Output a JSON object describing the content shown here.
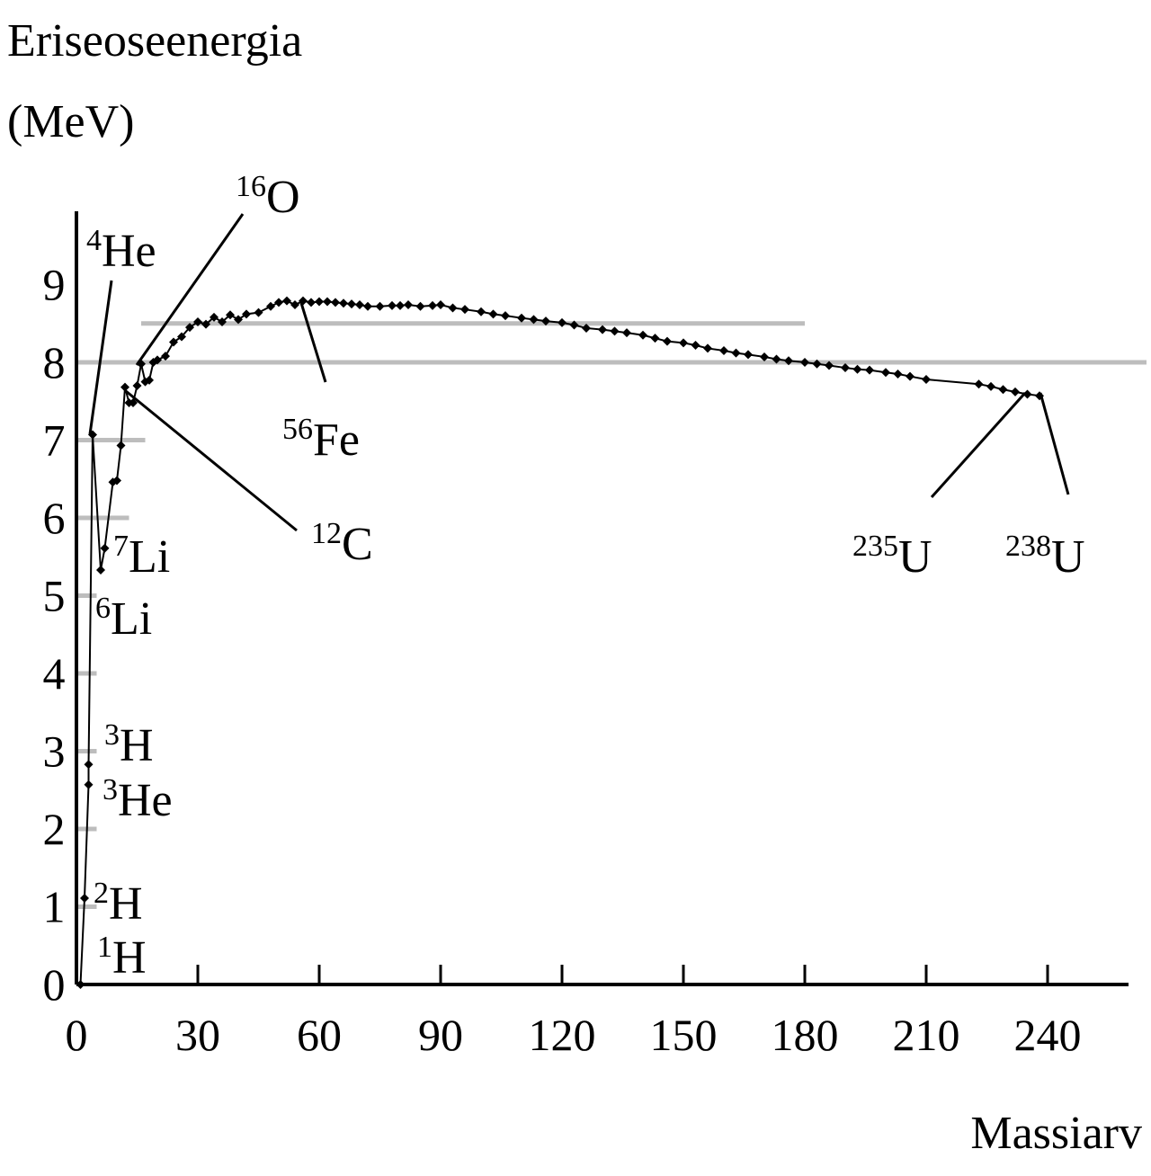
{
  "chart_data": {
    "type": "line",
    "ylabel": [
      "Eriseoseenergia",
      "(MeV)"
    ],
    "xlabel": "Massiarv",
    "xlim": [
      0,
      260
    ],
    "ylim": [
      0,
      10
    ],
    "xticks": [
      "0",
      "30",
      "60",
      "90",
      "120",
      "150",
      "180",
      "210",
      "240"
    ],
    "yticks": [
      "0",
      "1",
      "2",
      "3",
      "4",
      "5",
      "6",
      "7",
      "8",
      "9"
    ],
    "xtick_values": [
      0,
      30,
      60,
      90,
      120,
      150,
      180,
      210,
      240
    ],
    "ytick_values": [
      0,
      1,
      2,
      3,
      4,
      5,
      6,
      7,
      8,
      9
    ],
    "grid": "horizontal",
    "guide_color": "#bdbdbd",
    "series": [
      {
        "x": [
          1,
          2,
          3,
          3,
          4,
          6,
          7,
          9,
          10,
          11,
          12,
          13,
          14,
          15,
          16,
          17,
          18,
          19,
          20,
          22,
          24,
          26,
          28,
          30,
          32,
          34,
          36,
          38,
          40,
          42,
          45,
          48,
          50,
          52,
          54,
          56,
          58,
          60,
          62,
          64,
          66,
          68,
          70,
          72,
          75,
          78,
          80,
          82,
          85,
          88,
          90,
          93,
          96,
          100,
          103,
          106,
          110,
          113,
          116,
          120,
          123,
          126,
          130,
          133,
          136,
          140,
          143,
          146,
          150,
          153,
          156,
          160,
          163,
          166,
          170,
          173,
          176,
          180,
          183,
          186,
          190,
          193,
          196,
          200,
          203,
          206,
          210,
          223,
          226,
          229,
          232,
          235,
          238
        ],
        "y": [
          0,
          1.11,
          2.57,
          2.83,
          7.07,
          5.33,
          5.61,
          6.46,
          6.48,
          6.93,
          7.68,
          7.48,
          7.48,
          7.7,
          7.98,
          7.75,
          7.77,
          8.0,
          8.03,
          8.08,
          8.26,
          8.33,
          8.45,
          8.52,
          8.49,
          8.58,
          8.52,
          8.61,
          8.55,
          8.62,
          8.64,
          8.72,
          8.77,
          8.79,
          8.74,
          8.79,
          8.77,
          8.78,
          8.78,
          8.77,
          8.76,
          8.75,
          8.74,
          8.72,
          8.72,
          8.73,
          8.73,
          8.74,
          8.72,
          8.73,
          8.74,
          8.7,
          8.68,
          8.65,
          8.62,
          8.6,
          8.57,
          8.55,
          8.53,
          8.51,
          8.48,
          8.44,
          8.42,
          8.4,
          8.38,
          8.35,
          8.31,
          8.27,
          8.25,
          8.22,
          8.18,
          8.15,
          8.12,
          8.1,
          8.07,
          8.04,
          8.02,
          8.0,
          7.98,
          7.96,
          7.93,
          7.91,
          7.9,
          7.87,
          7.85,
          7.82,
          7.78,
          7.72,
          7.69,
          7.65,
          7.62,
          7.59,
          7.57
        ]
      }
    ],
    "annotations": [
      {
        "iso": "1H",
        "mass": "1",
        "name": "H"
      },
      {
        "iso": "2H",
        "mass": "2",
        "name": "H"
      },
      {
        "iso": "3He",
        "mass": "3",
        "name": "He"
      },
      {
        "iso": "3H",
        "mass": "3",
        "name": "H"
      },
      {
        "iso": "4He",
        "mass": "4",
        "name": "He"
      },
      {
        "iso": "6Li",
        "mass": "6",
        "name": "Li"
      },
      {
        "iso": "7Li",
        "mass": "7",
        "name": "Li"
      },
      {
        "iso": "12C",
        "mass": "12",
        "name": "C"
      },
      {
        "iso": "16O",
        "mass": "16",
        "name": "O"
      },
      {
        "iso": "56Fe",
        "mass": "56",
        "name": "Fe"
      },
      {
        "iso": "235U",
        "mass": "235",
        "name": "U"
      },
      {
        "iso": "238U",
        "mass": "238",
        "name": "U"
      }
    ]
  }
}
